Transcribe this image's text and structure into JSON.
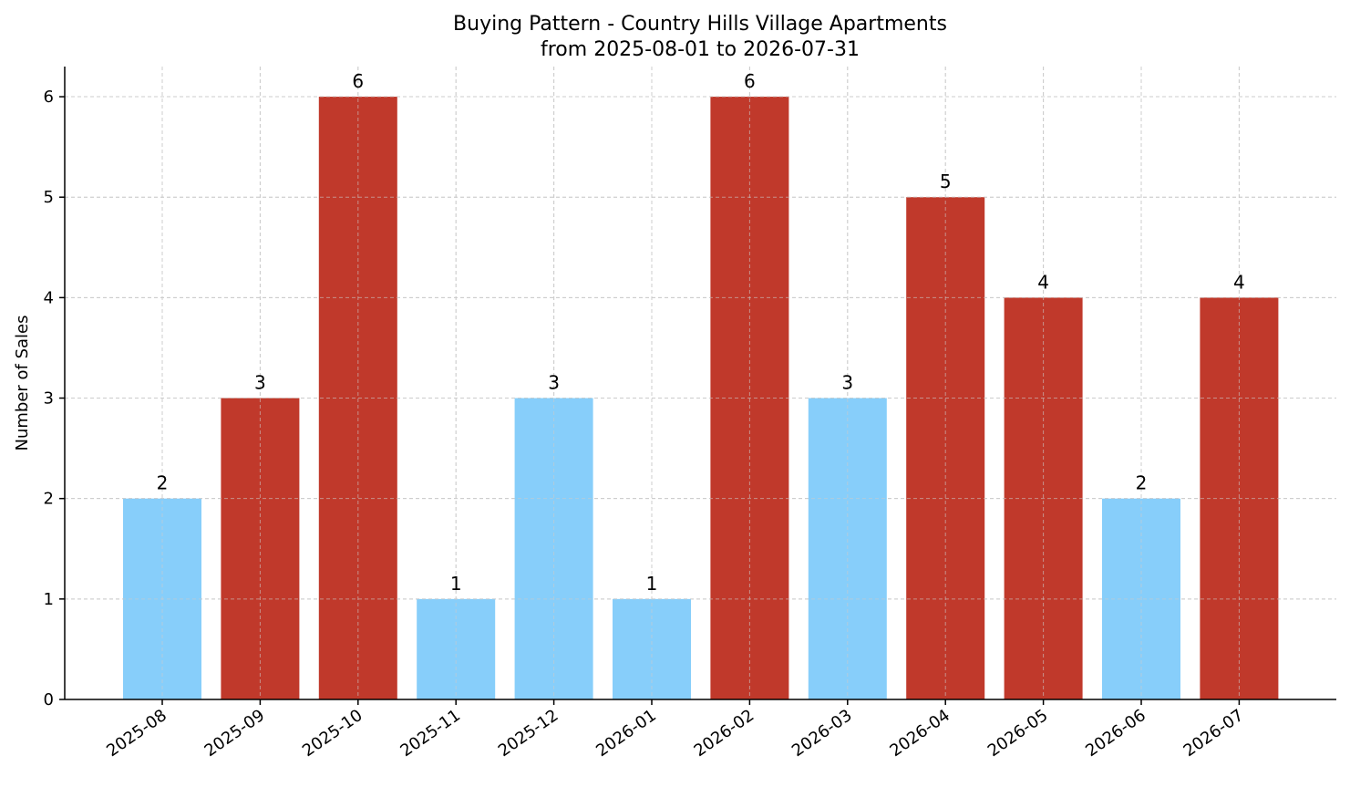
{
  "chart_data": {
    "type": "bar",
    "title": "Buying Pattern - Country Hills Village Apartments",
    "subtitle": "from 2025-08-01 to 2026-07-31",
    "xlabel": "",
    "ylabel": "Number of Sales",
    "categories": [
      "2025-08",
      "2025-09",
      "2025-10",
      "2025-11",
      "2025-12",
      "2026-01",
      "2026-02",
      "2026-03",
      "2026-04",
      "2026-05",
      "2026-06",
      "2026-07"
    ],
    "values": [
      2,
      3,
      6,
      1,
      3,
      1,
      6,
      3,
      5,
      4,
      2,
      4
    ],
    "bar_colors": [
      "#87CEFA",
      "#C0392B",
      "#C0392B",
      "#87CEFA",
      "#87CEFA",
      "#87CEFA",
      "#C0392B",
      "#87CEFA",
      "#C0392B",
      "#C0392B",
      "#87CEFA",
      "#C0392B"
    ],
    "ylim": [
      0,
      6.3
    ],
    "yticks": [
      0,
      1,
      2,
      3,
      4,
      5,
      6
    ],
    "grid": true,
    "data_labels": true
  }
}
